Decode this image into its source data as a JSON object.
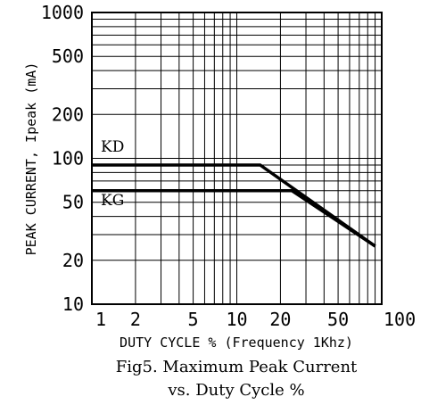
{
  "chart_data": {
    "type": "line",
    "x_scale": "log",
    "y_scale": "log",
    "xlim": [
      1,
      100
    ],
    "ylim": [
      10,
      1000
    ],
    "grid": true,
    "xlabel": "DUTY CYCLE % (Frequency 1Khz)",
    "ylabel": "PEAK CURRENT, Ipeak (mA)",
    "x_ticks": [
      {
        "value": 1,
        "label": "1"
      },
      {
        "value": 2,
        "label": "2"
      },
      {
        "value": 5,
        "label": "5"
      },
      {
        "value": 10,
        "label": "10"
      },
      {
        "value": 20,
        "label": "20"
      },
      {
        "value": 50,
        "label": "50"
      },
      {
        "value": 100,
        "label": "100"
      }
    ],
    "y_ticks": [
      {
        "value": 10,
        "label": "10"
      },
      {
        "value": 20,
        "label": "20"
      },
      {
        "value": 50,
        "label": "50"
      },
      {
        "value": 100,
        "label": "100"
      },
      {
        "value": 200,
        "label": "200"
      },
      {
        "value": 500,
        "label": "500"
      },
      {
        "value": 1000,
        "label": "1000"
      }
    ],
    "series": [
      {
        "name": "KD",
        "color": "#000000",
        "x": [
          1,
          14.5,
          90
        ],
        "y": [
          90,
          90,
          25
        ]
      },
      {
        "name": "KG",
        "color": "#000000",
        "x": [
          1,
          24,
          90
        ],
        "y": [
          60,
          60,
          25
        ]
      }
    ],
    "caption_lines": [
      "Fig5. Maximum Peak Current",
      "vs. Duty Cycle %"
    ]
  }
}
